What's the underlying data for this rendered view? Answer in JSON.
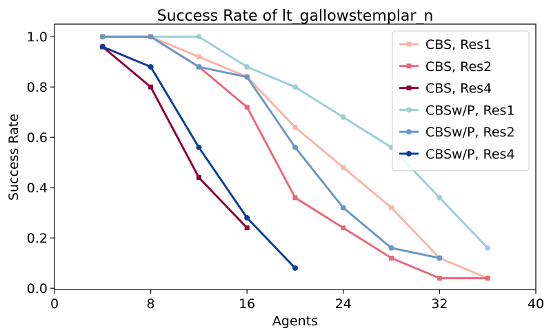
{
  "chart_data": {
    "type": "line",
    "title": "Success Rate of lt_gallowstemplar_n",
    "xlabel": "Agents",
    "ylabel": "Success Rate",
    "xlim": [
      0,
      40
    ],
    "ylim": [
      -0.005,
      1.05
    ],
    "xticks": [
      0,
      8,
      16,
      24,
      32,
      40
    ],
    "yticks": [
      0.0,
      0.2,
      0.4,
      0.6,
      0.8,
      1.0
    ],
    "ytick_labels": [
      "0.0",
      "0.2",
      "0.4",
      "0.6",
      "0.8",
      "1.0"
    ],
    "grid": false,
    "legend_position": "top-right",
    "series": [
      {
        "name": "CBS, Res1",
        "color": "#fbb4a6",
        "marker": "square",
        "x": [
          4,
          8,
          12,
          16,
          20,
          24,
          28,
          32,
          36
        ],
        "y": [
          1.0,
          1.0,
          0.92,
          0.84,
          0.64,
          0.48,
          0.32,
          0.12,
          0.04
        ]
      },
      {
        "name": "CBS, Res2",
        "color": "#e8697a",
        "marker": "square",
        "x": [
          4,
          8,
          12,
          16,
          20,
          24,
          28,
          32,
          36
        ],
        "y": [
          1.0,
          1.0,
          0.88,
          0.72,
          0.36,
          0.24,
          0.12,
          0.04,
          0.04
        ]
      },
      {
        "name": "CBS, Res4",
        "color": "#8e0038",
        "marker": "square",
        "x": [
          4,
          8,
          12,
          16
        ],
        "y": [
          0.96,
          0.8,
          0.44,
          0.24
        ]
      },
      {
        "name": "CBSw/P, Res1",
        "color": "#9ccfd6",
        "marker": "circle",
        "x": [
          4,
          8,
          12,
          16,
          20,
          24,
          28,
          32,
          36
        ],
        "y": [
          1.0,
          1.0,
          1.0,
          0.88,
          0.8,
          0.68,
          0.56,
          0.36,
          0.16
        ]
      },
      {
        "name": "CBSw/P, Res2",
        "color": "#6b97c3",
        "marker": "circle",
        "x": [
          4,
          8,
          12,
          16,
          20,
          24,
          28,
          32
        ],
        "y": [
          1.0,
          1.0,
          0.88,
          0.84,
          0.56,
          0.32,
          0.16,
          0.12
        ]
      },
      {
        "name": "CBSw/P, Res4",
        "color": "#0a3f97",
        "marker": "circle",
        "x": [
          4,
          8,
          12,
          16,
          20
        ],
        "y": [
          0.96,
          0.88,
          0.56,
          0.28,
          0.08
        ]
      }
    ]
  }
}
